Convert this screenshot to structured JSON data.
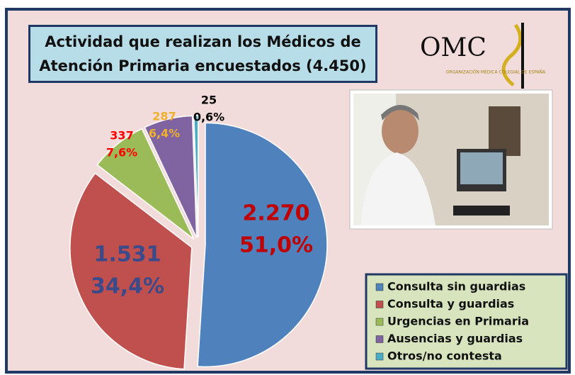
{
  "chart_data": {
    "type": "pie",
    "title": "Actividad que realizan los Médicos de Atención Primaria encuestados (4.450)",
    "logo": {
      "name": "OMC",
      "subtitle": "ORGANIZACIÓN MÉDICA COLEGIAL DE ESPAÑA"
    },
    "categories": [
      "Consulta sin guardias",
      "Consulta y guardias",
      "Urgencias en Primaria",
      "Ausencias y guardias",
      "Otros/no contesta"
    ],
    "values": [
      2270,
      1531,
      337,
      287,
      25
    ],
    "value_labels": [
      "2.270",
      "1.531",
      "337",
      "287",
      "25"
    ],
    "percentages": [
      51.0,
      34.4,
      7.6,
      6.4,
      0.6
    ],
    "percentage_labels": [
      "51,0%",
      "34,4%",
      "7,6%",
      "6,4%",
      "0,6%"
    ],
    "colors": [
      "#4f81bd",
      "#c0504d",
      "#9bbb59",
      "#8064a2",
      "#4bacc6"
    ],
    "label_colors": [
      "#c00000",
      "#3d4a8a",
      "#ff0000",
      "#f0b030",
      "#000000"
    ],
    "legend": "bottom-right"
  }
}
